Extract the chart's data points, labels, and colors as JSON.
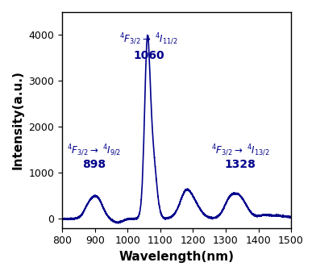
{
  "title": "",
  "xlabel": "Wavelength(nm)",
  "ylabel": "Intensity(a.u.)",
  "xlim": [
    800,
    1500
  ],
  "ylim": [
    -200,
    4500
  ],
  "yticks": [
    0,
    1000,
    2000,
    3000,
    4000
  ],
  "xticks": [
    800,
    900,
    1000,
    1100,
    1200,
    1300,
    1400,
    1500
  ],
  "line_color": "#00008B",
  "background": "#ffffff"
}
